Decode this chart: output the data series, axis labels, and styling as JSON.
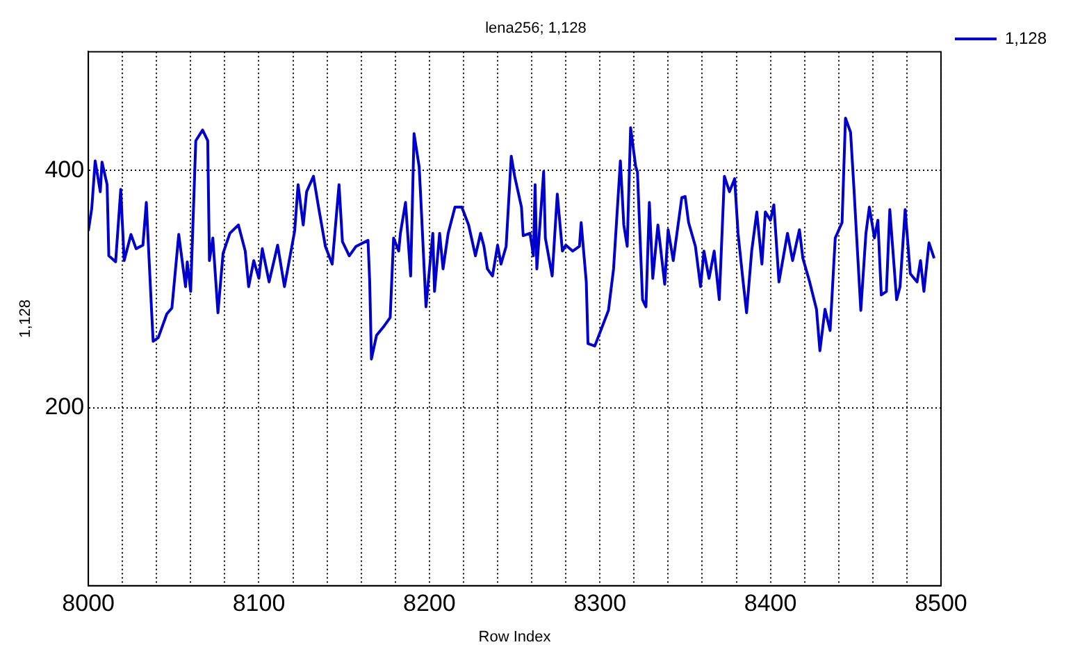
{
  "chart_data": {
    "type": "line",
    "title": "lena256; 1,128",
    "xlabel": "Row Index",
    "ylabel": "1,128",
    "xlim": [
      8000,
      8500
    ],
    "ylim": [
      50,
      500
    ],
    "xticks": [
      8000,
      {
        "value": 8020,
        "label": null
      },
      {
        "value": 8040,
        "label": null
      },
      {
        "value": 8060,
        "label": null
      },
      {
        "value": 8080,
        "label": null
      },
      8100,
      {
        "value": 8120,
        "label": null
      },
      {
        "value": 8140,
        "label": null
      },
      {
        "value": 8160,
        "label": null
      },
      {
        "value": 8180,
        "label": null
      },
      8200,
      {
        "value": 8220,
        "label": null
      },
      {
        "value": 8240,
        "label": null
      },
      {
        "value": 8260,
        "label": null
      },
      {
        "value": 8280,
        "label": null
      },
      8300,
      {
        "value": 8320,
        "label": null
      },
      {
        "value": 8340,
        "label": null
      },
      {
        "value": 8360,
        "label": null
      },
      {
        "value": 8380,
        "label": null
      },
      8400,
      {
        "value": 8420,
        "label": null
      },
      {
        "value": 8440,
        "label": null
      },
      {
        "value": 8460,
        "label": null
      },
      {
        "value": 8480,
        "label": null
      },
      8500
    ],
    "yticks": [
      200,
      400
    ],
    "grid": true,
    "legend": "top right",
    "marker": "none",
    "line_style": "solid",
    "series": [
      {
        "name": "1,128",
        "color": "#0000cc",
        "x": [
          8000,
          8002,
          8004,
          8007,
          8008,
          8011,
          8012,
          8016,
          8019,
          8021,
          8025,
          8028,
          8032,
          8034,
          8037,
          8038,
          8041,
          8046,
          8049,
          8053,
          8057,
          8058,
          8060,
          8063,
          8067,
          8070,
          8071,
          8073,
          8076,
          8079,
          8083,
          8088,
          8092,
          8094,
          8097,
          8100,
          8102,
          8106,
          8111,
          8115,
          8121,
          8123,
          8126,
          8128,
          8132,
          8135,
          8139,
          8143,
          8147,
          8149,
          8153,
          8157,
          8164,
          8165,
          8166,
          8169,
          8173,
          8177,
          8179,
          8182,
          8183,
          8186,
          8189,
          8191,
          8194,
          8195,
          8198,
          8202,
          8203,
          8206,
          8208,
          8211,
          8215,
          8219,
          8223,
          8227,
          8230,
          8232,
          8234,
          8237,
          8240,
          8242,
          8245,
          8248,
          8250,
          8254,
          8255,
          8259,
          8261,
          8262,
          8263,
          8267,
          8268,
          8272,
          8275,
          8278,
          8280,
          8284,
          8288,
          8289,
          8292,
          8293,
          8297,
          8301,
          8305,
          8308,
          8312,
          8314,
          8316,
          8318,
          8321,
          8322,
          8325,
          8327,
          8329,
          8331,
          8334,
          8338,
          8340,
          8343,
          8348,
          8350,
          8352,
          8356,
          8359,
          8361,
          8364,
          8367,
          8370,
          8373,
          8376,
          8379,
          8381,
          8384,
          8386,
          8389,
          8392,
          8395,
          8397,
          8400,
          8402,
          8405,
          8410,
          8413,
          8417,
          8419,
          8423,
          8427,
          8429,
          8432,
          8435,
          8438,
          8442,
          8444,
          8447,
          8449,
          8450,
          8453,
          8456,
          8458,
          8461,
          8463,
          8465,
          8468,
          8470,
          8474,
          8476,
          8479,
          8482,
          8486,
          8488,
          8490,
          8493,
          8496
        ],
        "values": [
          349,
          368,
          408,
          382,
          407,
          388,
          328,
          323,
          384,
          324,
          346,
          334,
          337,
          373,
          284,
          256,
          259,
          279,
          284,
          346,
          302,
          323,
          298,
          425,
          434,
          425,
          324,
          343,
          280,
          330,
          347,
          354,
          332,
          302,
          324,
          309,
          334,
          306,
          337,
          302,
          349,
          388,
          354,
          382,
          395,
          369,
          336,
          321,
          388,
          340,
          328,
          336,
          341,
          306,
          241,
          261,
          268,
          276,
          343,
          332,
          347,
          373,
          311,
          431,
          403,
          375,
          285,
          347,
          298,
          347,
          317,
          347,
          369,
          369,
          354,
          328,
          347,
          336,
          317,
          311,
          337,
          321,
          336,
          412,
          395,
          369,
          345,
          347,
          328,
          388,
          317,
          399,
          343,
          311,
          380,
          332,
          337,
          332,
          336,
          356,
          306,
          254,
          252,
          267,
          282,
          317,
          408,
          354,
          336,
          436,
          403,
          399,
          291,
          285,
          373,
          309,
          354,
          304,
          350,
          324,
          377,
          378,
          356,
          336,
          302,
          332,
          309,
          332,
          291,
          395,
          382,
          393,
          347,
          306,
          280,
          332,
          365,
          321,
          365,
          358,
          371,
          306,
          347,
          324,
          350,
          326,
          306,
          283,
          248,
          283,
          265,
          343,
          356,
          444,
          432,
          384,
          358,
          282,
          347,
          369,
          343,
          358,
          295,
          298,
          367,
          291,
          302,
          367,
          313,
          306,
          324,
          298,
          339,
          326
        ]
      }
    ]
  }
}
